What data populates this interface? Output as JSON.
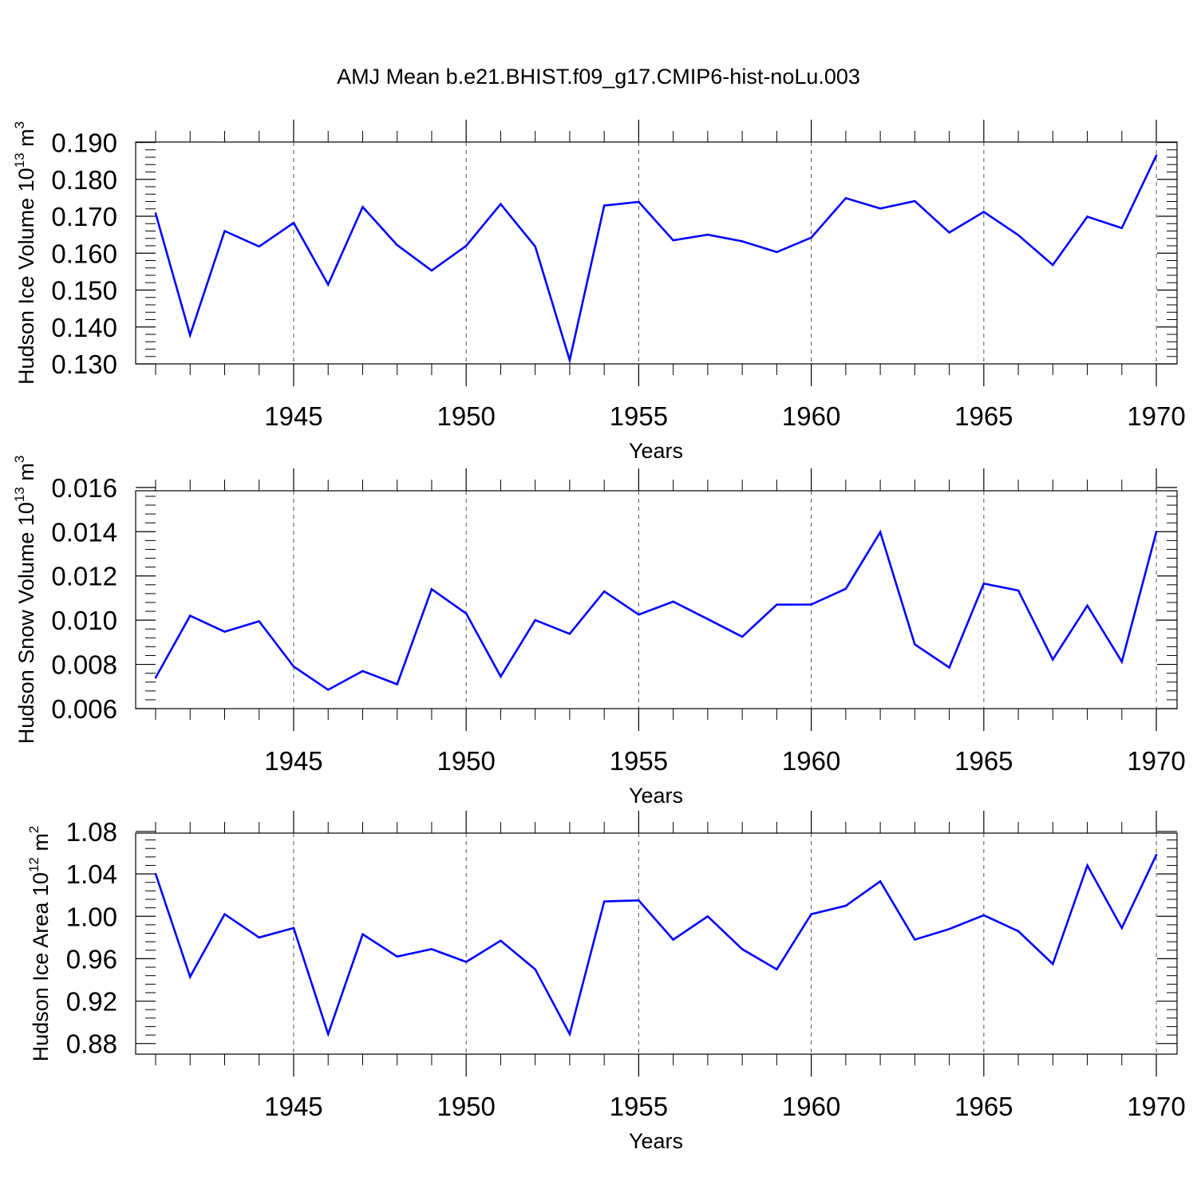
{
  "title": "AMJ Mean b.e21.BHIST.f09_g17.CMIP6-hist-noLu.003",
  "colors": {
    "line": "#0000ff",
    "axis": "#000000",
    "grid": "#555555"
  },
  "chart_data": [
    {
      "type": "line",
      "xlabel": "Years",
      "ylabel": {
        "prefix": "Hudson Ice Volume 10",
        "exp": "13",
        "unit": " m",
        "unit_exp": "3"
      },
      "xlim": [
        1941,
        1970
      ],
      "ylim": [
        0.13,
        0.19
      ],
      "yticks": [
        "0.130",
        "0.140",
        "0.150",
        "0.160",
        "0.170",
        "0.180",
        "0.190"
      ],
      "xticks": [
        "1945",
        "1950",
        "1955",
        "1960",
        "1965",
        "1970"
      ],
      "grid": "vertical dashed at labeled years",
      "x": [
        1941,
        1942,
        1943,
        1944,
        1945,
        1946,
        1947,
        1948,
        1949,
        1950,
        1951,
        1952,
        1953,
        1954,
        1955,
        1956,
        1957,
        1958,
        1959,
        1960,
        1961,
        1962,
        1963,
        1964,
        1965,
        1966,
        1967,
        1968,
        1969,
        1970
      ],
      "values": [
        0.1708,
        0.1378,
        0.166,
        0.1618,
        0.1682,
        0.1515,
        0.1725,
        0.1622,
        0.1553,
        0.162,
        0.1733,
        0.1618,
        0.131,
        0.1729,
        0.1739,
        0.1635,
        0.165,
        0.1632,
        0.1603,
        0.1642,
        0.1749,
        0.1721,
        0.1741,
        0.1656,
        0.1712,
        0.1649,
        0.1568,
        0.1699,
        0.1668,
        0.1865
      ]
    },
    {
      "type": "line",
      "xlabel": "Years",
      "ylabel": {
        "prefix": "Hudson Snow Volume 10",
        "exp": "13",
        "unit": " m",
        "unit_exp": "3"
      },
      "xlim": [
        1941,
        1970
      ],
      "ylim": [
        0.006,
        0.016
      ],
      "yticks": [
        "0.006",
        "0.008",
        "0.010",
        "0.012",
        "0.014",
        "0.016"
      ],
      "xticks": [
        "1945",
        "1950",
        "1955",
        "1960",
        "1965",
        "1970"
      ],
      "grid": "vertical dashed at labeled years",
      "x": [
        1941,
        1942,
        1943,
        1944,
        1945,
        1946,
        1947,
        1948,
        1949,
        1950,
        1951,
        1952,
        1953,
        1954,
        1955,
        1956,
        1957,
        1958,
        1959,
        1960,
        1961,
        1962,
        1963,
        1964,
        1965,
        1966,
        1967,
        1968,
        1969,
        1970
      ],
      "values": [
        0.0074,
        0.0102,
        0.00948,
        0.00995,
        0.0079,
        0.00685,
        0.0077,
        0.0071,
        0.0114,
        0.0103,
        0.00745,
        0.01,
        0.00938,
        0.0113,
        0.01025,
        0.01084,
        0.01005,
        0.00925,
        0.0107,
        0.01071,
        0.01142,
        0.01398,
        0.0089,
        0.00786,
        0.01165,
        0.01134,
        0.00822,
        0.01066,
        0.00812,
        0.014
      ]
    },
    {
      "type": "line",
      "xlabel": "Years",
      "ylabel": {
        "prefix": "Hudson Ice Area 10",
        "exp": "12",
        "unit": " m",
        "unit_exp": "2"
      },
      "xlim": [
        1941,
        1970
      ],
      "ylim": [
        0.87,
        1.09
      ],
      "yticks": [
        "0.88",
        "0.92",
        "0.96",
        "1.00",
        "1.04",
        "1.08"
      ],
      "yticks_values": [
        0.88,
        0.92,
        0.96,
        1.0,
        1.04,
        1.08
      ],
      "xticks": [
        "1945",
        "1950",
        "1955",
        "1960",
        "1965",
        "1970"
      ],
      "grid": "vertical dashed at labeled years",
      "x": [
        1941,
        1942,
        1943,
        1944,
        1945,
        1946,
        1947,
        1948,
        1949,
        1950,
        1951,
        1952,
        1953,
        1954,
        1955,
        1956,
        1957,
        1958,
        1959,
        1960,
        1961,
        1962,
        1963,
        1964,
        1965,
        1966,
        1967,
        1968,
        1969,
        1970
      ],
      "values": [
        1.04,
        0.943,
        1.002,
        0.98,
        0.989,
        0.889,
        0.983,
        0.962,
        0.969,
        0.957,
        0.977,
        0.95,
        0.889,
        1.014,
        1.015,
        0.978,
        1.0,
        0.969,
        0.95,
        1.002,
        1.01,
        1.033,
        0.978,
        0.988,
        1.001,
        0.986,
        0.955,
        1.048,
        0.989,
        1.058
      ]
    }
  ]
}
